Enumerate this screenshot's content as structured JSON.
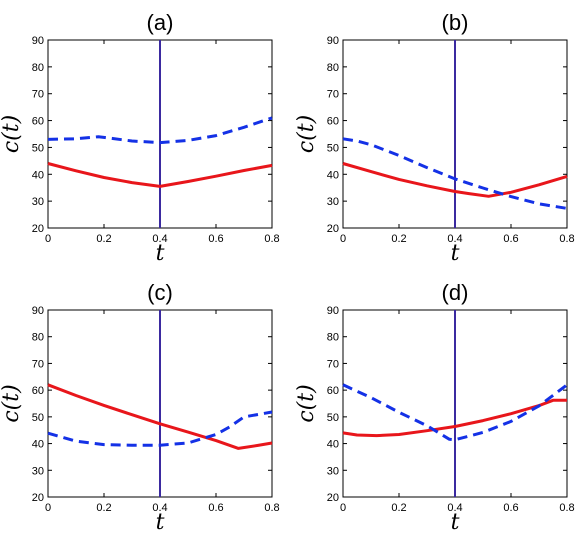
{
  "colors": {
    "solid_series": "#e8161b",
    "dashed_series": "#1431e6",
    "vline": "#3b2aa0"
  },
  "chart_data": [
    {
      "type": "line",
      "title": "(a)",
      "xlabel": "t",
      "ylabel": "c(t)",
      "xlim": [
        0,
        0.8
      ],
      "ylim": [
        20,
        90
      ],
      "xticks": [
        "0",
        "0.2",
        "0.4",
        "0.6",
        "0.8"
      ],
      "yticks": [
        "20",
        "30",
        "40",
        "50",
        "60",
        "70",
        "80",
        "90"
      ],
      "vline_x": 0.4,
      "grid": false,
      "series": [
        {
          "style": "solid",
          "x": [
            0,
            0.1,
            0.2,
            0.3,
            0.4,
            0.5,
            0.6,
            0.7,
            0.8
          ],
          "y": [
            44,
            41.3,
            38.8,
            36.9,
            35.5,
            37.3,
            39.3,
            41.4,
            43.3
          ]
        },
        {
          "style": "dashed",
          "x": [
            0,
            0.1,
            0.18,
            0.3,
            0.4,
            0.5,
            0.6,
            0.7,
            0.8
          ],
          "y": [
            53,
            53.2,
            54,
            52.4,
            51.8,
            52.6,
            54.4,
            57.5,
            61
          ]
        }
      ]
    },
    {
      "type": "line",
      "title": "(b)",
      "xlabel": "t",
      "ylabel": "c(t)",
      "xlim": [
        0,
        0.8
      ],
      "ylim": [
        20,
        90
      ],
      "xticks": [
        "0",
        "0.2",
        "0.4",
        "0.6",
        "0.8"
      ],
      "yticks": [
        "20",
        "30",
        "40",
        "50",
        "60",
        "70",
        "80",
        "90"
      ],
      "vline_x": 0.4,
      "grid": false,
      "series": [
        {
          "style": "solid",
          "x": [
            0,
            0.1,
            0.2,
            0.3,
            0.4,
            0.45,
            0.52,
            0.6,
            0.7,
            0.8
          ],
          "y": [
            44,
            41,
            38.1,
            35.7,
            33.6,
            32.8,
            31.8,
            33.3,
            36.1,
            39.2
          ]
        },
        {
          "style": "dashed",
          "x": [
            0,
            0.05,
            0.1,
            0.2,
            0.3,
            0.4,
            0.5,
            0.6,
            0.7,
            0.8
          ],
          "y": [
            53.2,
            52.4,
            51,
            47,
            42.5,
            38.3,
            34.9,
            31.7,
            29,
            27.3
          ]
        }
      ]
    },
    {
      "type": "line",
      "title": "(c)",
      "xlabel": "t",
      "ylabel": "c(t)",
      "xlim": [
        0,
        0.8
      ],
      "ylim": [
        20,
        90
      ],
      "xticks": [
        "0",
        "0.2",
        "0.4",
        "0.6",
        "0.8"
      ],
      "yticks": [
        "20",
        "30",
        "40",
        "50",
        "60",
        "70",
        "80",
        "90"
      ],
      "vline_x": 0.4,
      "grid": false,
      "series": [
        {
          "style": "solid",
          "x": [
            0,
            0.1,
            0.2,
            0.3,
            0.4,
            0.5,
            0.6,
            0.68,
            0.75,
            0.8
          ],
          "y": [
            62,
            58,
            54.3,
            50.8,
            47.4,
            44.3,
            41.1,
            38.2,
            39.3,
            40.2
          ]
        },
        {
          "style": "dashed",
          "x": [
            0,
            0.1,
            0.2,
            0.3,
            0.4,
            0.5,
            0.6,
            0.65,
            0.7,
            0.75,
            0.8
          ],
          "y": [
            43.9,
            40.9,
            39.6,
            39.4,
            39.4,
            40.2,
            43.4,
            46.3,
            50,
            50.9,
            51.8
          ]
        }
      ]
    },
    {
      "type": "line",
      "title": "(d)",
      "xlabel": "t",
      "ylabel": "c(t)",
      "xlim": [
        0,
        0.8
      ],
      "ylim": [
        20,
        90
      ],
      "xticks": [
        "0",
        "0.2",
        "0.4",
        "0.6",
        "0.8"
      ],
      "yticks": [
        "20",
        "30",
        "40",
        "50",
        "60",
        "70",
        "80",
        "90"
      ],
      "vline_x": 0.4,
      "grid": false,
      "series": [
        {
          "style": "solid",
          "x": [
            0,
            0.05,
            0.12,
            0.2,
            0.3,
            0.4,
            0.5,
            0.6,
            0.7,
            0.75,
            0.8
          ],
          "y": [
            44,
            43.2,
            43,
            43.4,
            44.8,
            46.4,
            48.6,
            51.2,
            54.2,
            56.2,
            56.2
          ]
        },
        {
          "style": "dashed",
          "x": [
            0,
            0.1,
            0.2,
            0.3,
            0.38,
            0.4,
            0.5,
            0.6,
            0.7,
            0.8
          ],
          "y": [
            62,
            57.2,
            51.7,
            46.7,
            41.6,
            41.4,
            44.2,
            48.3,
            54.1,
            62
          ]
        }
      ]
    }
  ]
}
